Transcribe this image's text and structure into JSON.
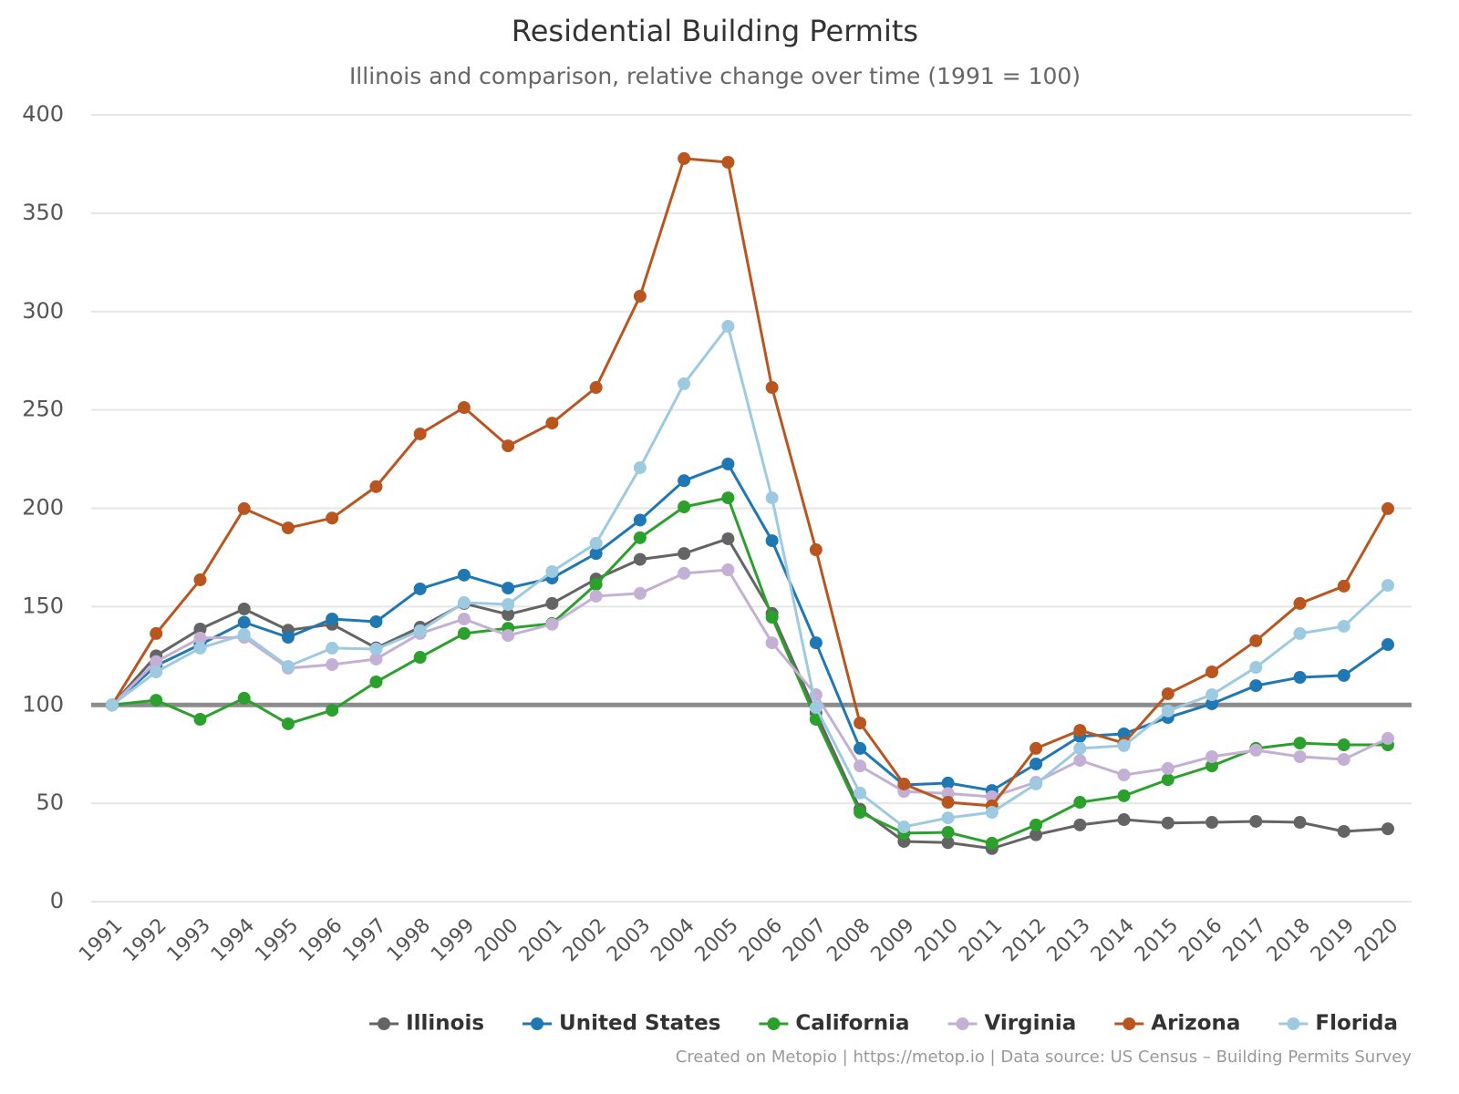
{
  "chart_data": {
    "type": "line",
    "title": "Residential Building Permits",
    "subtitle": "Illinois and comparison, relative change over time (1991 = 100)",
    "credits": "Created on Metopio | https://metop.io | Data source: US Census – Building Permits Survey",
    "categories": [
      "1991",
      "1992",
      "1993",
      "1994",
      "1995",
      "1996",
      "1997",
      "1998",
      "1999",
      "2000",
      "2001",
      "2002",
      "2003",
      "2004",
      "2005",
      "2006",
      "2007",
      "2008",
      "2009",
      "2010",
      "2011",
      "2012",
      "2013",
      "2014",
      "2015",
      "2016",
      "2017",
      "2018",
      "2019",
      "2020"
    ],
    "ylim": [
      0,
      400
    ],
    "yticks": [
      0,
      50,
      100,
      150,
      200,
      250,
      300,
      350,
      400
    ],
    "grid": true,
    "reference_line": 100,
    "legend": "bottom-right",
    "series": [
      {
        "name": "Illinois",
        "color": "#646464",
        "values": [
          100,
          125,
          138.6,
          148.8,
          138,
          141,
          129,
          139.5,
          151.6,
          146,
          151.6,
          164,
          174,
          177,
          184.5,
          146.5,
          96,
          47,
          30.6,
          30,
          27,
          34,
          39,
          41.7,
          40,
          40.3,
          40.8,
          40.3,
          35.7,
          37
        ]
      },
      {
        "name": "United States",
        "color": "#1f77b4",
        "values": [
          100,
          120,
          130.7,
          142,
          134.4,
          143.7,
          142.3,
          159,
          166,
          159.4,
          164.5,
          177,
          194,
          214,
          222.5,
          183.5,
          131.6,
          77.9,
          59.3,
          60.3,
          56.5,
          70,
          84,
          85.3,
          93.6,
          100.6,
          109.8,
          114,
          115,
          130.7
        ]
      },
      {
        "name": "California",
        "color": "#2ca02c",
        "values": [
          100,
          102.4,
          92.7,
          103.4,
          90.4,
          97.3,
          111.7,
          124.2,
          136.3,
          139,
          141.4,
          161.3,
          185,
          200.7,
          205.3,
          144.6,
          92.7,
          45.4,
          34.8,
          35.2,
          29.7,
          39,
          50.5,
          53.8,
          62,
          69,
          77.9,
          80.6,
          79.7,
          79.7
        ]
      },
      {
        "name": "Virginia",
        "color": "#c5b0d5",
        "values": [
          100,
          122,
          134,
          134.4,
          118.7,
          120.5,
          123.3,
          136.3,
          143.7,
          135.3,
          141,
          155.3,
          156.7,
          166.9,
          168.7,
          131.6,
          105.2,
          69,
          56,
          55,
          53.3,
          60.7,
          71.8,
          64.4,
          67.7,
          73.7,
          77,
          73.7,
          72.3,
          83
        ]
      },
      {
        "name": "Arizona",
        "color": "#b9561f",
        "values": [
          100,
          136.3,
          163.6,
          199.8,
          190,
          195,
          211,
          237.8,
          251.2,
          231.7,
          243.3,
          261.4,
          307.8,
          377.8,
          375.9,
          261.4,
          178.9,
          90.8,
          59.8,
          50.5,
          48.7,
          77.9,
          87.1,
          80.6,
          105.7,
          116.8,
          132.6,
          151.6,
          160.4,
          199.8
        ]
      },
      {
        "name": "Florida",
        "color": "#9ecae1",
        "values": [
          100,
          116.8,
          128.9,
          135.8,
          119.6,
          128.9,
          128.4,
          137.7,
          152,
          151.1,
          167.8,
          182.2,
          220.6,
          263.3,
          292.5,
          205.3,
          98.7,
          55.2,
          38,
          42.6,
          45.4,
          59.8,
          77.9,
          79.3,
          96.9,
          105.2,
          119.1,
          136.3,
          140,
          160.8
        ]
      }
    ]
  }
}
